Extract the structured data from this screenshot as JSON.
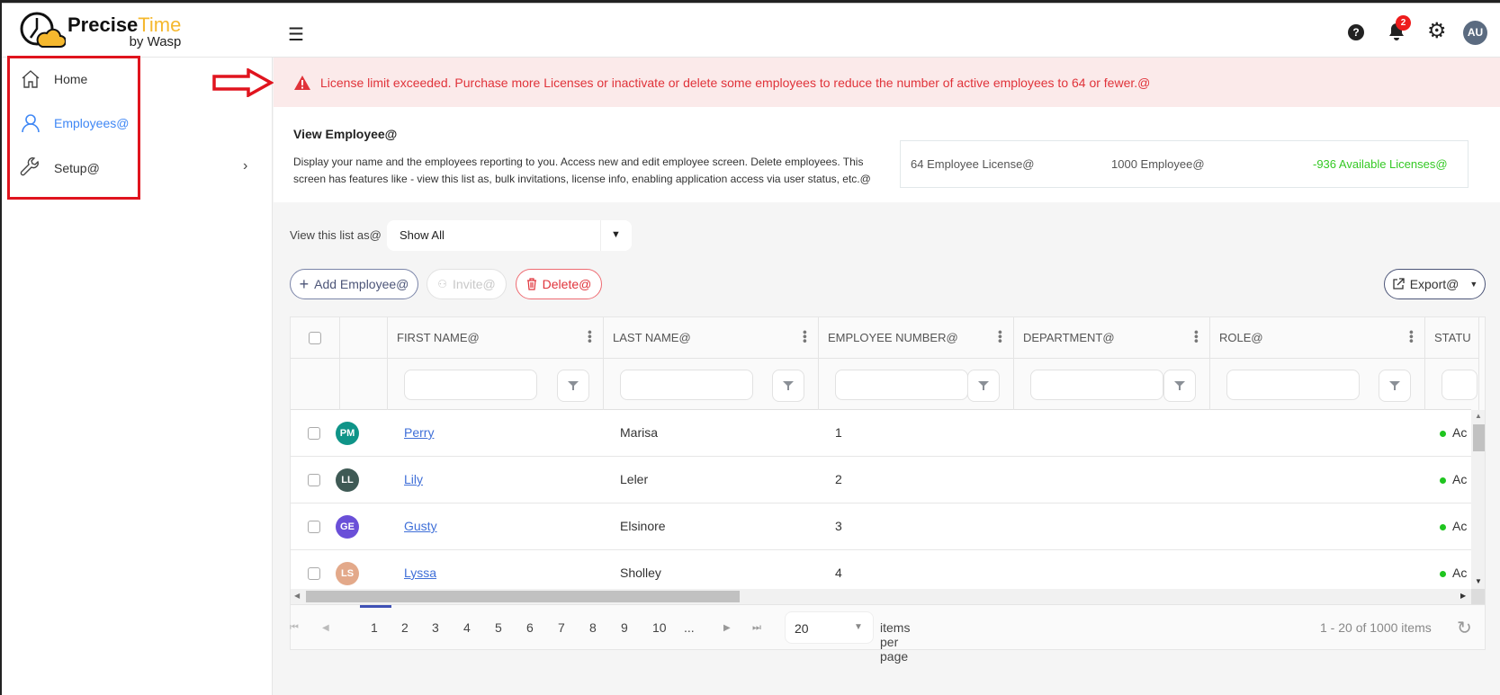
{
  "app": {
    "logo_main": "Precise",
    "logo_accent": "Time",
    "logo_sub": "by Wasp"
  },
  "header": {
    "notification_count": "2",
    "avatar_initials": "AU"
  },
  "sidebar": {
    "items": [
      {
        "label": "Home",
        "icon": "home-icon"
      },
      {
        "label": "Employees@",
        "icon": "user-icon",
        "active": true
      },
      {
        "label": "Setup@",
        "icon": "wrench-icon"
      }
    ]
  },
  "alert": {
    "message": "License limit exceeded. Purchase more Licenses or inactivate or delete some employees to reduce the number of active employees to 64 or fewer.@"
  },
  "info": {
    "title": "View Employee@",
    "description_line1": "Display your name and the employees reporting to you. Access new and edit employee screen. Delete employees. This",
    "description_line2": "screen has features like - view this list as, bulk invitations, license info, enabling application access via user status, etc.@",
    "license_count": "64 Employee License@",
    "employee_count": "1000 Employee@",
    "available": "-936 Available Licenses@"
  },
  "colors": {
    "accent": "#3f87f5",
    "danger": "#e0333a",
    "available": "#34c924",
    "status_active": "#1fc51f"
  },
  "view_list": {
    "label": "View this list as@",
    "selected": "Show All"
  },
  "toolbar": {
    "add": "Add Employee@",
    "invite": "Invite@",
    "delete": "Delete@",
    "export": "Export@"
  },
  "table": {
    "columns": [
      "FIRST NAME@",
      "LAST NAME@",
      "EMPLOYEE NUMBER@",
      "DEPARTMENT@",
      "ROLE@",
      "STATU"
    ],
    "rows": [
      {
        "initials": "PM",
        "avatar_color": "#0f9488",
        "first": "Perry",
        "last": "Marisa",
        "number": "1",
        "status": "Ac"
      },
      {
        "initials": "LL",
        "avatar_color": "#3f5a55",
        "first": "Lily",
        "last": "Leler",
        "number": "2",
        "status": "Ac"
      },
      {
        "initials": "GE",
        "avatar_color": "#6a4fd8",
        "first": "Gusty",
        "last": "Elsinore",
        "number": "3",
        "status": "Ac"
      },
      {
        "initials": "LS",
        "avatar_color": "#e3a98a",
        "first": "Lyssa",
        "last": "Sholley",
        "number": "4",
        "status": "Ac"
      }
    ]
  },
  "pagination": {
    "pages": [
      "1",
      "2",
      "3",
      "4",
      "5",
      "6",
      "7",
      "8",
      "9",
      "10",
      "..."
    ],
    "current": "1",
    "page_size": "20",
    "items_per_page_label": "items per page",
    "summary": "1 - 20 of 1000 items"
  }
}
